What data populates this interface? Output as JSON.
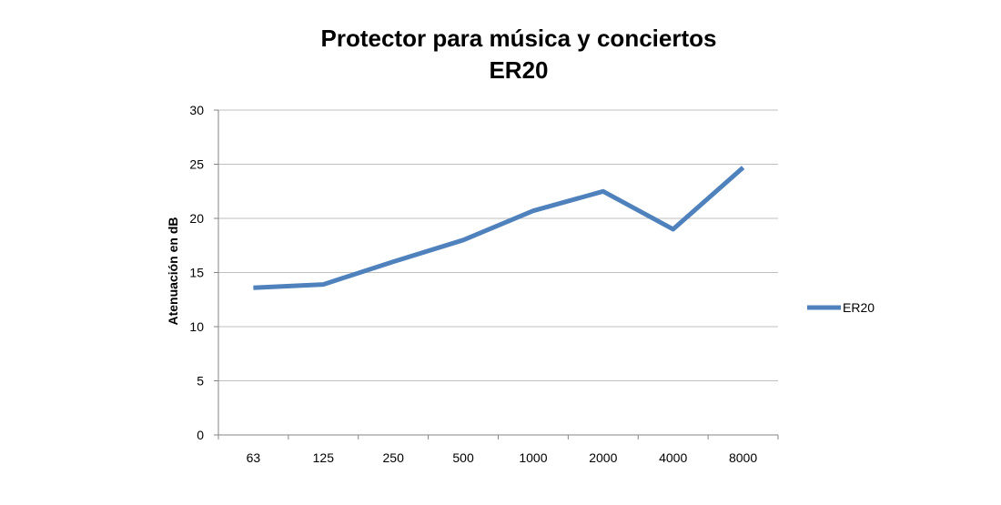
{
  "chart_data": {
    "type": "line",
    "title": "Protector para música y conciertos",
    "subtitle": "ER20",
    "xlabel": "",
    "ylabel": "Atenuación en dB",
    "categories": [
      "63",
      "125",
      "250",
      "500",
      "1000",
      "2000",
      "4000",
      "8000"
    ],
    "series": [
      {
        "name": "ER20",
        "values": [
          13.6,
          13.9,
          16.0,
          18.0,
          20.7,
          22.5,
          19.0,
          24.7
        ],
        "color": "#4F81BD"
      }
    ],
    "ylim": [
      0,
      30
    ],
    "yticks": [
      "0",
      "5",
      "10",
      "15",
      "20",
      "25",
      "30"
    ],
    "grid": "horizontal",
    "legend": "right",
    "gridline_color": "#BFBFBF",
    "axis_color": "#868686"
  }
}
